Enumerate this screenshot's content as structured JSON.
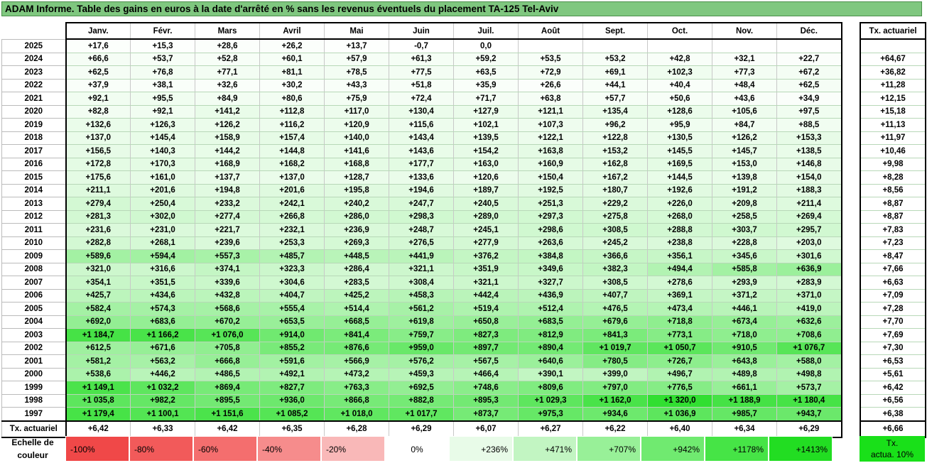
{
  "title": "ADAM Informe. Table des gains en euros à la date d'arrêté en % sans les revenus éventuels du placement TA-125 Tel-Aviv",
  "months": [
    "Janv.",
    "Févr.",
    "Mars",
    "Avril",
    "Mai",
    "Juin",
    "Juil.",
    "Août",
    "Sept.",
    "Oct.",
    "Nov.",
    "Déc."
  ],
  "side_header": "Tx. actuariel",
  "rows": [
    {
      "year": "2025",
      "values": [
        "+17,6",
        "+15,3",
        "+28,6",
        "+26,2",
        "+13,7",
        "-0,7",
        "0,0",
        "",
        "",
        "",
        "",
        ""
      ],
      "tx": ""
    },
    {
      "year": "2024",
      "values": [
        "+66,6",
        "+53,7",
        "+52,8",
        "+60,1",
        "+57,9",
        "+61,3",
        "+59,2",
        "+53,5",
        "+53,2",
        "+42,8",
        "+32,1",
        "+22,7"
      ],
      "tx": "+64,67"
    },
    {
      "year": "2023",
      "values": [
        "+62,5",
        "+76,8",
        "+77,1",
        "+81,1",
        "+78,5",
        "+77,5",
        "+63,5",
        "+72,9",
        "+69,1",
        "+102,3",
        "+77,3",
        "+67,2"
      ],
      "tx": "+36,82"
    },
    {
      "year": "2022",
      "values": [
        "+37,9",
        "+38,1",
        "+32,6",
        "+30,2",
        "+43,3",
        "+51,8",
        "+35,9",
        "+26,6",
        "+44,1",
        "+40,4",
        "+48,4",
        "+62,5"
      ],
      "tx": "+11,28"
    },
    {
      "year": "2021",
      "values": [
        "+92,1",
        "+95,5",
        "+84,9",
        "+80,6",
        "+75,9",
        "+72,4",
        "+71,7",
        "+63,8",
        "+57,7",
        "+50,6",
        "+43,6",
        "+34,9"
      ],
      "tx": "+12,15"
    },
    {
      "year": "2020",
      "values": [
        "+82,8",
        "+92,1",
        "+141,2",
        "+112,8",
        "+117,0",
        "+130,4",
        "+127,9",
        "+121,1",
        "+135,4",
        "+128,6",
        "+105,6",
        "+97,5"
      ],
      "tx": "+15,18"
    },
    {
      "year": "2019",
      "values": [
        "+132,6",
        "+126,3",
        "+126,2",
        "+116,2",
        "+120,9",
        "+115,6",
        "+102,1",
        "+107,3",
        "+96,2",
        "+95,9",
        "+84,7",
        "+88,5"
      ],
      "tx": "+11,13"
    },
    {
      "year": "2018",
      "values": [
        "+137,0",
        "+145,4",
        "+158,9",
        "+157,4",
        "+140,0",
        "+143,4",
        "+139,5",
        "+122,1",
        "+122,8",
        "+130,5",
        "+126,2",
        "+153,3"
      ],
      "tx": "+11,97"
    },
    {
      "year": "2017",
      "values": [
        "+156,5",
        "+140,3",
        "+144,2",
        "+144,8",
        "+141,6",
        "+143,6",
        "+154,2",
        "+163,8",
        "+153,2",
        "+145,5",
        "+145,7",
        "+138,5"
      ],
      "tx": "+10,46"
    },
    {
      "year": "2016",
      "values": [
        "+172,8",
        "+170,3",
        "+168,9",
        "+168,2",
        "+168,8",
        "+177,7",
        "+163,0",
        "+160,9",
        "+162,8",
        "+169,5",
        "+153,0",
        "+146,8"
      ],
      "tx": "+9,98"
    },
    {
      "year": "2015",
      "values": [
        "+175,6",
        "+161,0",
        "+137,7",
        "+137,0",
        "+128,7",
        "+133,6",
        "+120,6",
        "+150,4",
        "+167,2",
        "+144,5",
        "+139,8",
        "+154,0"
      ],
      "tx": "+8,28"
    },
    {
      "year": "2014",
      "values": [
        "+211,1",
        "+201,6",
        "+194,8",
        "+201,6",
        "+195,8",
        "+194,6",
        "+189,7",
        "+192,5",
        "+180,7",
        "+192,6",
        "+191,2",
        "+188,3"
      ],
      "tx": "+8,56"
    },
    {
      "year": "2013",
      "values": [
        "+279,4",
        "+250,4",
        "+233,2",
        "+242,1",
        "+240,2",
        "+247,7",
        "+240,5",
        "+251,3",
        "+229,2",
        "+226,0",
        "+209,8",
        "+211,4"
      ],
      "tx": "+8,87"
    },
    {
      "year": "2012",
      "values": [
        "+281,3",
        "+302,0",
        "+277,4",
        "+266,8",
        "+286,0",
        "+298,3",
        "+289,0",
        "+297,3",
        "+275,8",
        "+268,0",
        "+258,5",
        "+269,4"
      ],
      "tx": "+8,87"
    },
    {
      "year": "2011",
      "values": [
        "+231,6",
        "+231,0",
        "+221,7",
        "+232,1",
        "+236,9",
        "+248,7",
        "+245,1",
        "+298,6",
        "+308,5",
        "+288,8",
        "+303,7",
        "+295,7"
      ],
      "tx": "+7,83"
    },
    {
      "year": "2010",
      "values": [
        "+282,8",
        "+268,1",
        "+239,6",
        "+253,3",
        "+269,3",
        "+276,5",
        "+277,9",
        "+263,6",
        "+245,2",
        "+238,8",
        "+228,8",
        "+203,0"
      ],
      "tx": "+7,23"
    },
    {
      "year": "2009",
      "values": [
        "+589,6",
        "+594,4",
        "+557,3",
        "+485,7",
        "+448,5",
        "+441,9",
        "+376,2",
        "+384,8",
        "+366,6",
        "+356,1",
        "+345,6",
        "+301,6"
      ],
      "tx": "+8,47"
    },
    {
      "year": "2008",
      "values": [
        "+321,0",
        "+316,6",
        "+374,1",
        "+323,3",
        "+286,4",
        "+321,1",
        "+351,9",
        "+349,6",
        "+382,3",
        "+494,4",
        "+585,8",
        "+636,9"
      ],
      "tx": "+7,66"
    },
    {
      "year": "2007",
      "values": [
        "+354,1",
        "+351,5",
        "+339,6",
        "+304,6",
        "+283,5",
        "+308,4",
        "+321,1",
        "+327,7",
        "+308,5",
        "+278,6",
        "+293,9",
        "+283,9"
      ],
      "tx": "+6,63"
    },
    {
      "year": "2006",
      "values": [
        "+425,7",
        "+434,6",
        "+432,8",
        "+404,7",
        "+425,2",
        "+458,3",
        "+442,4",
        "+436,9",
        "+407,7",
        "+369,1",
        "+371,2",
        "+371,0"
      ],
      "tx": "+7,09"
    },
    {
      "year": "2005",
      "values": [
        "+582,4",
        "+574,3",
        "+568,6",
        "+555,4",
        "+514,4",
        "+561,2",
        "+519,4",
        "+512,4",
        "+476,5",
        "+473,4",
        "+446,1",
        "+419,0"
      ],
      "tx": "+7,28"
    },
    {
      "year": "2004",
      "values": [
        "+692,0",
        "+683,6",
        "+670,2",
        "+653,5",
        "+668,5",
        "+619,8",
        "+650,8",
        "+683,5",
        "+679,6",
        "+718,8",
        "+673,4",
        "+632,6"
      ],
      "tx": "+7,70"
    },
    {
      "year": "2003",
      "values": [
        "+1 184,7",
        "+1 166,2",
        "+1 076,0",
        "+914,0",
        "+841,4",
        "+759,7",
        "+827,3",
        "+812,9",
        "+841,3",
        "+773,1",
        "+718,0",
        "+708,6"
      ],
      "tx": "+7,69"
    },
    {
      "year": "2002",
      "values": [
        "+612,5",
        "+671,6",
        "+705,8",
        "+855,2",
        "+876,6",
        "+959,0",
        "+897,7",
        "+890,4",
        "+1 019,7",
        "+1 050,7",
        "+910,5",
        "+1 076,7"
      ],
      "tx": "+7,30"
    },
    {
      "year": "2001",
      "values": [
        "+581,2",
        "+563,2",
        "+666,8",
        "+591,6",
        "+566,9",
        "+576,2",
        "+567,5",
        "+640,6",
        "+780,5",
        "+726,7",
        "+643,8",
        "+588,0"
      ],
      "tx": "+6,53"
    },
    {
      "year": "2000",
      "values": [
        "+538,6",
        "+446,2",
        "+486,5",
        "+492,1",
        "+473,2",
        "+459,3",
        "+466,4",
        "+390,1",
        "+399,0",
        "+496,7",
        "+489,8",
        "+498,8"
      ],
      "tx": "+5,61"
    },
    {
      "year": "1999",
      "values": [
        "+1 149,1",
        "+1 032,2",
        "+869,4",
        "+827,7",
        "+763,3",
        "+692,5",
        "+748,6",
        "+809,6",
        "+797,0",
        "+776,5",
        "+661,1",
        "+573,7"
      ],
      "tx": "+6,42"
    },
    {
      "year": "1998",
      "values": [
        "+1 035,8",
        "+982,2",
        "+895,5",
        "+936,0",
        "+866,8",
        "+882,8",
        "+895,3",
        "+1 029,3",
        "+1 162,0",
        "+1 320,0",
        "+1 188,9",
        "+1 180,4"
      ],
      "tx": "+6,56"
    },
    {
      "year": "1997",
      "values": [
        "+1 179,4",
        "+1 100,1",
        "+1 151,6",
        "+1 085,2",
        "+1 018,0",
        "+1 017,7",
        "+873,7",
        "+975,3",
        "+934,6",
        "+1 036,9",
        "+985,7",
        "+943,7"
      ],
      "tx": "+6,38"
    }
  ],
  "avg_label": "Tx. actuariel",
  "avg_values": [
    "+6,42",
    "+6,33",
    "+6,42",
    "+6,35",
    "+6,28",
    "+6,29",
    "+6,07",
    "+6,27",
    "+6,22",
    "+6,40",
    "+6,34",
    "+6,29"
  ],
  "avg_total": "+6,66",
  "legend": {
    "label_line1": "Echelle de",
    "label_line2": "couleur",
    "items": [
      {
        "text": "-100%",
        "color": "#f04848",
        "kind": "neg"
      },
      {
        "text": "-80%",
        "color": "#f25a5a",
        "kind": "neg"
      },
      {
        "text": "-60%",
        "color": "#f46e6e",
        "kind": "neg"
      },
      {
        "text": "-40%",
        "color": "#f68c8c",
        "kind": "neg"
      },
      {
        "text": "-20%",
        "color": "#f9b8b8",
        "kind": "neg"
      },
      {
        "text": "0%",
        "color": "#ffffff",
        "kind": "zero"
      },
      {
        "text": "+236%",
        "color": "#e8fbe8",
        "kind": "pos"
      },
      {
        "text": "+471%",
        "color": "#c2f5c2",
        "kind": "pos"
      },
      {
        "text": "+707%",
        "color": "#98f098",
        "kind": "pos"
      },
      {
        "text": "+942%",
        "color": "#70ea70",
        "kind": "pos"
      },
      {
        "text": "+1178%",
        "color": "#46e446",
        "kind": "pos"
      },
      {
        "text": "+1413%",
        "color": "#22dd22",
        "kind": "pos"
      }
    ],
    "tx_line1": "Tx.",
    "tx_line2": "actua. 10%",
    "tx_color": "#19e019"
  }
}
